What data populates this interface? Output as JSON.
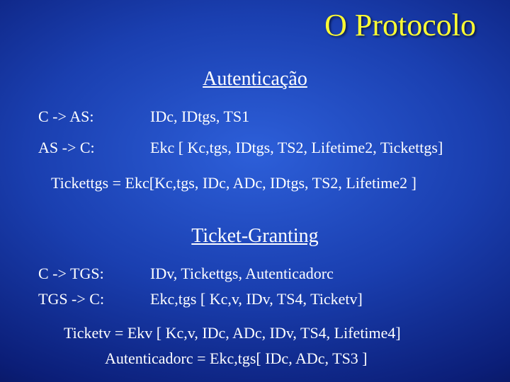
{
  "slide": {
    "title": "O Protocolo",
    "section1": "Autenticação",
    "auth": {
      "line1_label": "C -> AS:",
      "line1_value": "IDc, IDtgs, TS1",
      "line2_label": "AS -> C:",
      "line2_value": "Ekc [ Kc,tgs, IDtgs, TS2, Lifetime2, Tickettgs]",
      "line3": "Tickettgs = Ekc[Kc,tgs, IDc, ADc, IDtgs, TS2, Lifetime2 ]"
    },
    "section2": "Ticket-Granting",
    "tg": {
      "line1_label": "C -> TGS:",
      "line1_value": "IDv, Tickettgs, Autenticadorc",
      "line2_label": "TGS -> C:",
      "line2_value": "Ekc,tgs [ Kc,v, IDv, TS4, Ticketv]",
      "line3": "Ticketv = Ekv [ Kc,v, IDc, ADc, IDv, TS4, Lifetime4]",
      "line4": "Autenticadorc = Ekc,tgs[ IDc, ADc, TS3 ]"
    }
  },
  "style": {
    "title_color": "#ffff33",
    "text_color": "#ffffff",
    "bg_center": "#2d5fd9",
    "bg_edge": "#050b40",
    "title_fontsize": 44,
    "section_fontsize": 28,
    "body_fontsize": 22,
    "font_family": "Times New Roman"
  }
}
